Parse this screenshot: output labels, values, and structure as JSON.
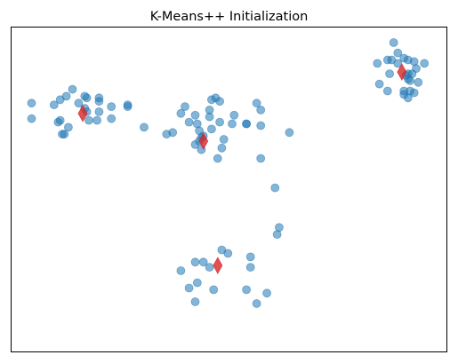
{
  "chart_data": {
    "type": "scatter",
    "title": "K-Means++ Initialization",
    "xlabel": "",
    "ylabel": "",
    "xlim": [
      -10.9,
      10.4
    ],
    "ylim": [
      -11.0,
      7.8
    ],
    "x_ticks_visible": false,
    "y_ticks_visible": false,
    "grid": false,
    "legend": "none",
    "series": [
      {
        "role": "data",
        "marker": "circle",
        "color": "#1f77b4",
        "alpha": 0.55,
        "x": [
          -9.9,
          -9.9,
          -8.8,
          -8.5,
          -8.1,
          -8.4,
          -7.9,
          -7.6,
          -7.3,
          -7.2,
          -7.2,
          -7.1,
          -6.6,
          -6.7,
          -6.6,
          -6.0,
          -6.0,
          -5.2,
          -8.3,
          -8.2,
          -7.3,
          -6.6,
          -8.6,
          -8.5,
          -5.2,
          -4.4,
          -3.3,
          -3.0,
          -2.4,
          -2.6,
          -2.2,
          -1.8,
          -1.7,
          -1.6,
          -1.7,
          -1.6,
          -1.2,
          -1.2,
          -1.1,
          -0.9,
          -0.7,
          -0.7,
          0.6,
          0.6,
          1.1,
          1.3,
          2.7,
          -1.9,
          -0.8,
          -1.9,
          -1.5,
          -1.1,
          -0.6,
          -0.5,
          0.0,
          -0.1,
          1.3,
          1.3,
          2.0,
          2.2,
          2.1,
          -0.6,
          -0.3,
          -1.5,
          -1.2,
          -1.9,
          -1.8,
          0.8,
          0.6,
          0.8,
          -2.2,
          -2.6,
          -1.9,
          1.1,
          -1.0,
          1.6,
          7.1,
          7.0,
          7.6,
          7.5,
          8.0,
          7.5,
          7.7,
          8.3,
          7.8,
          8.0,
          8.5,
          8.4,
          8.5,
          8.6,
          8.3,
          9.0,
          8.8,
          8.5,
          8.3,
          8.6,
          8.5,
          9.3,
          8.7,
          8.9,
          8.8
        ],
        "y": [
          3.4,
          2.5,
          3.3,
          2.4,
          2.0,
          1.6,
          4.2,
          3.4,
          3.8,
          3.7,
          2.9,
          2.4,
          2.9,
          2.4,
          3.7,
          3.2,
          2.5,
          3.2,
          1.6,
          3.8,
          3.1,
          3.5,
          2.3,
          3.6,
          3.3,
          2.0,
          1.6,
          1.7,
          3.2,
          2.8,
          2.3,
          2.2,
          1.8,
          1.4,
          1.2,
          0.7,
          2.6,
          3.0,
          3.6,
          3.7,
          3.5,
          2.3,
          2.2,
          2.2,
          3.4,
          3.0,
          1.7,
          2.7,
          0.2,
          1.0,
          1.5,
          1.9,
          0.8,
          1.3,
          2.7,
          2.2,
          2.1,
          0.2,
          -1.5,
          -3.8,
          -4.2,
          -5.1,
          -5.3,
          -5.8,
          -6.1,
          -5.8,
          -7.0,
          -5.5,
          -7.4,
          -6.1,
          -7.3,
          -6.3,
          -8.1,
          -8.2,
          -7.4,
          -7.6,
          4.5,
          5.7,
          5.1,
          5.9,
          5.7,
          4.1,
          5.9,
          6.0,
          6.9,
          6.3,
          5.9,
          5.0,
          5.1,
          4.7,
          4.1,
          4.6,
          4.0,
          3.7,
          3.9,
          4.1,
          4.8,
          5.7,
          5.1,
          5.4,
          5.8
        ]
      },
      {
        "role": "centroids",
        "marker": "thin-diamond",
        "color": "#d62728",
        "alpha": 0.8,
        "x": [
          -7.4,
          -1.5,
          -0.8,
          8.2
        ],
        "y": [
          2.8,
          1.2,
          -6.0,
          5.2
        ]
      }
    ]
  }
}
